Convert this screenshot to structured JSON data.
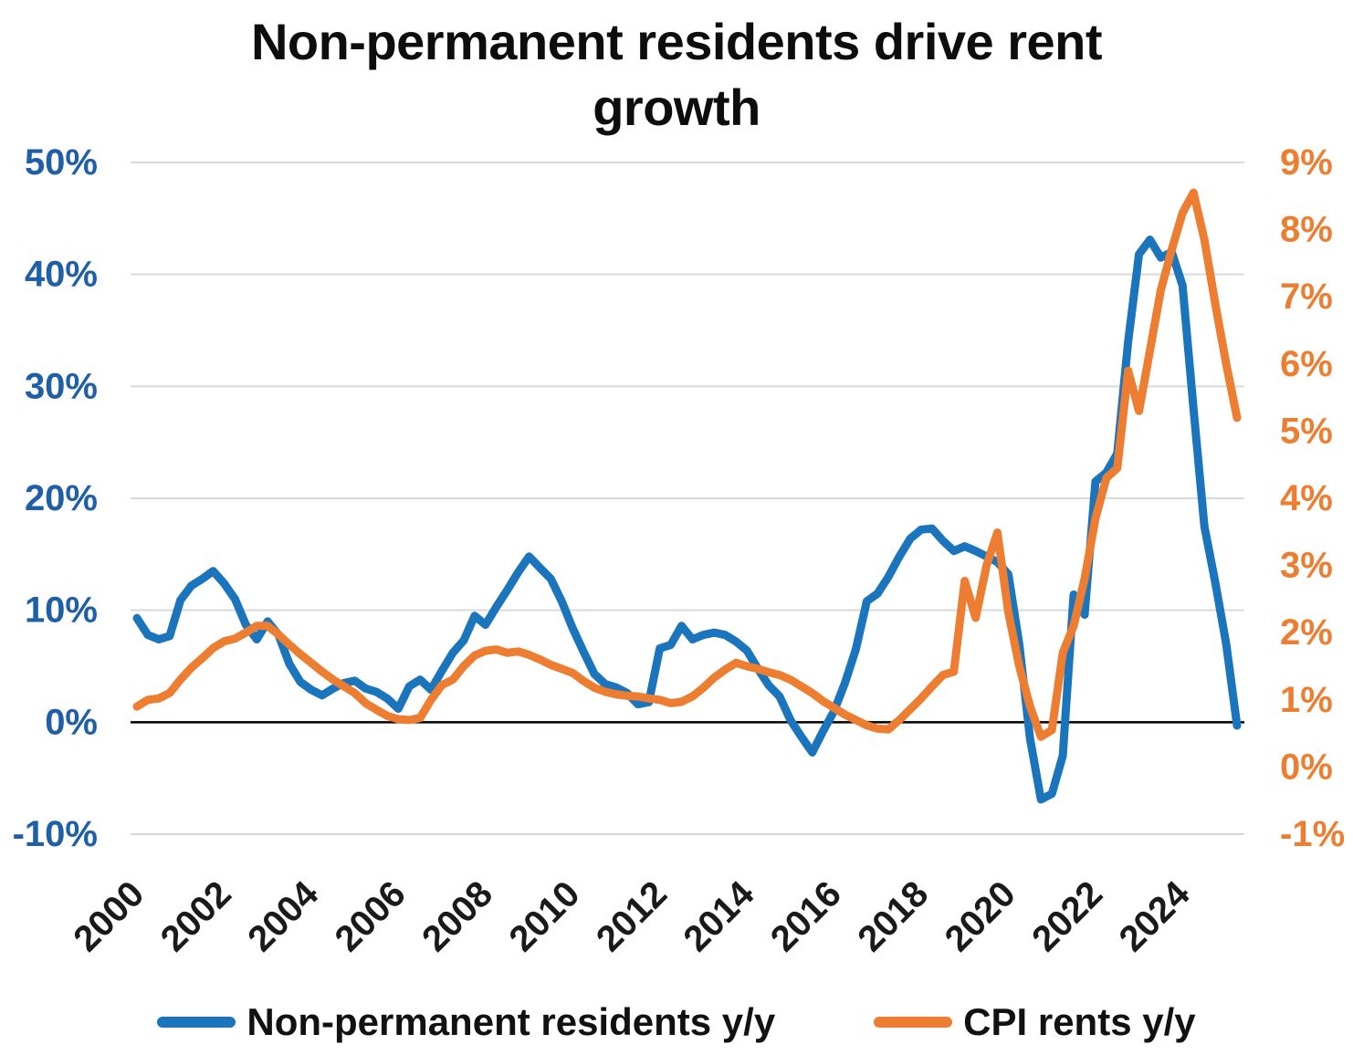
{
  "chart": {
    "title": "Non-permanent residents drive rent growth"
  },
  "legend": {
    "items": [
      {
        "label": "Non-permanent residents y/y",
        "color": "#1B75BC"
      },
      {
        "label": "CPI rents y/y",
        "color": "#ED7D31"
      }
    ]
  },
  "chart_data": {
    "type": "line",
    "title": "Non-permanent residents drive rent growth",
    "x": {
      "unit": "quarterly",
      "start_year": 2000,
      "end_year": 2025.25,
      "tick_labels": [
        "2000",
        "2002",
        "2004",
        "2006",
        "2008",
        "2010",
        "2012",
        "2014",
        "2016",
        "2018",
        "2020",
        "2022",
        "2024"
      ],
      "ticks_every_n_points": 8
    },
    "axes": {
      "left": {
        "tick_labels": [
          "50%",
          "40%",
          "30%",
          "20%",
          "10%",
          "0%",
          "-10%"
        ],
        "tick_values": [
          50,
          40,
          30,
          20,
          10,
          0,
          -10
        ],
        "min": -10,
        "max": 50,
        "label_color": "#1F5FA8"
      },
      "right": {
        "tick_labels": [
          "9%",
          "8%",
          "7%",
          "6%",
          "5%",
          "4%",
          "3%",
          "2%",
          "1%",
          "0%",
          "-1%"
        ],
        "tick_values": [
          9,
          8,
          7,
          6,
          5,
          4,
          3,
          2,
          1,
          0,
          -1
        ],
        "min": -1,
        "max": 9,
        "label_color": "#ED7D31"
      }
    },
    "grid_on": true,
    "grid_color": "#D9D9D9",
    "zero_line_color": "#000000",
    "legend_position": "bottom",
    "series": [
      {
        "name": "Non-permanent residents y/y",
        "axis": "left",
        "color": "#1B75BC",
        "values": [
          9.3,
          7.8,
          7.4,
          7.7,
          10.9,
          12.2,
          12.8,
          13.5,
          12.4,
          11.0,
          8.7,
          7.4,
          9.0,
          7.8,
          5.2,
          3.6,
          2.9,
          2.4,
          3.0,
          3.5,
          3.7,
          3.0,
          2.7,
          2.1,
          1.2,
          3.2,
          3.8,
          2.9,
          4.6,
          6.2,
          7.3,
          9.5,
          8.7,
          10.3,
          11.8,
          13.4,
          14.8,
          13.8,
          12.8,
          10.8,
          8.4,
          6.3,
          4.3,
          3.4,
          3.1,
          2.6,
          1.6,
          1.8,
          6.6,
          6.9,
          8.6,
          7.4,
          7.8,
          8.0,
          7.8,
          7.2,
          6.4,
          4.8,
          3.3,
          2.3,
          0.2,
          -1.3,
          -2.7,
          -0.8,
          1.0,
          3.5,
          6.5,
          10.8,
          11.5,
          13.0,
          14.8,
          16.4,
          17.2,
          17.3,
          16.2,
          15.3,
          15.7,
          15.3,
          14.8,
          14.3,
          13.2,
          7.0,
          -1.5,
          -6.9,
          -6.4,
          -3.0,
          11.4,
          9.6,
          21.5,
          22.3,
          24.0,
          34.0,
          41.8,
          43.1,
          41.5,
          42.0,
          39.0,
          28.0,
          17.5,
          12.5,
          7.0,
          -0.3
        ]
      },
      {
        "name": "CPI rents y/y",
        "axis": "right",
        "color": "#ED7D31",
        "values": [
          0.9,
          1.0,
          1.02,
          1.1,
          1.3,
          1.48,
          1.62,
          1.77,
          1.87,
          1.91,
          2.0,
          2.1,
          2.1,
          1.97,
          1.82,
          1.68,
          1.55,
          1.42,
          1.3,
          1.2,
          1.1,
          0.95,
          0.85,
          0.76,
          0.71,
          0.7,
          0.73,
          1.0,
          1.22,
          1.3,
          1.5,
          1.66,
          1.73,
          1.75,
          1.7,
          1.72,
          1.67,
          1.6,
          1.52,
          1.46,
          1.4,
          1.28,
          1.18,
          1.12,
          1.08,
          1.06,
          1.05,
          1.02,
          1.0,
          0.95,
          0.97,
          1.05,
          1.18,
          1.33,
          1.45,
          1.55,
          1.5,
          1.46,
          1.41,
          1.37,
          1.3,
          1.2,
          1.1,
          0.98,
          0.88,
          0.78,
          0.7,
          0.62,
          0.57,
          0.56,
          0.7,
          0.86,
          1.02,
          1.2,
          1.37,
          1.42,
          2.77,
          2.22,
          3.0,
          3.49,
          2.3,
          1.5,
          0.9,
          0.45,
          0.55,
          1.7,
          2.1,
          2.8,
          3.7,
          4.3,
          4.45,
          5.9,
          5.3,
          6.2,
          7.1,
          7.7,
          8.25,
          8.55,
          7.85,
          6.9,
          6.0,
          5.2
        ]
      }
    ]
  }
}
